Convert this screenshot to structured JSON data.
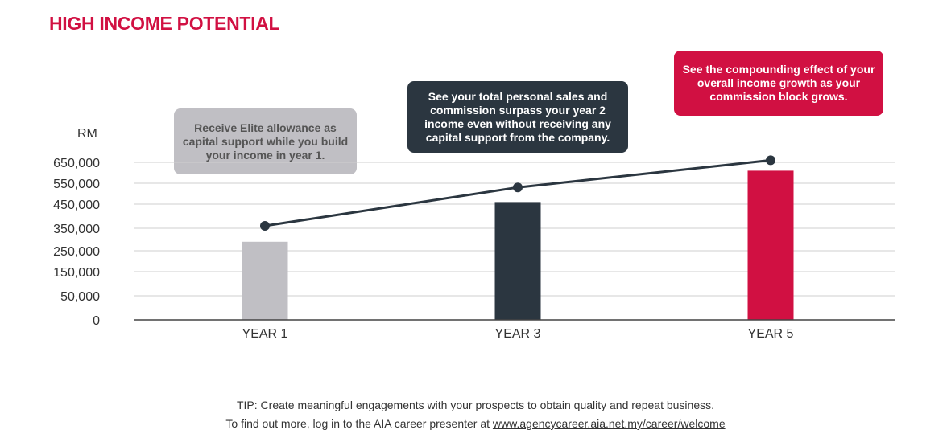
{
  "title": "HIGH INCOME POTENTIAL",
  "callouts": [
    "Receive Elite allowance as capital support while you build your income in year 1.",
    "See your total personal sales and commission surpass your year 2 income even without receiving any capital support from the company.",
    "See the compounding effect of your overall income growth as your commission block grows."
  ],
  "chart_data": {
    "type": "bar",
    "title": "HIGH INCOME POTENTIAL",
    "ylabel": "RM",
    "xlabel": "",
    "categories": [
      "YEAR 1",
      "YEAR 3",
      "YEAR 5"
    ],
    "yticks": [
      "0",
      "50,000",
      "150,000",
      "250,000",
      "350,000",
      "450,000",
      "550,000",
      "650,000"
    ],
    "ytick_values": [
      0,
      50000,
      150000,
      250000,
      350000,
      450000,
      550000,
      650000
    ],
    "series": [
      {
        "name": "Bars",
        "type": "bar",
        "values": [
          290000,
          460000,
          610000
        ],
        "colors": [
          "#c0bfc4",
          "#2b3640",
          "#d11042"
        ]
      },
      {
        "name": "Line",
        "type": "line",
        "values": [
          360000,
          530000,
          660000
        ],
        "color": "#2b3640"
      }
    ],
    "grid": true
  },
  "footer": {
    "tip": "TIP: Create meaningful engagements with your prospects to obtain quality and repeat business.",
    "more_prefix": "To find out more, log in to the AIA career presenter at ",
    "link": "www.agencycareer.aia.net.my/career/welcome"
  }
}
